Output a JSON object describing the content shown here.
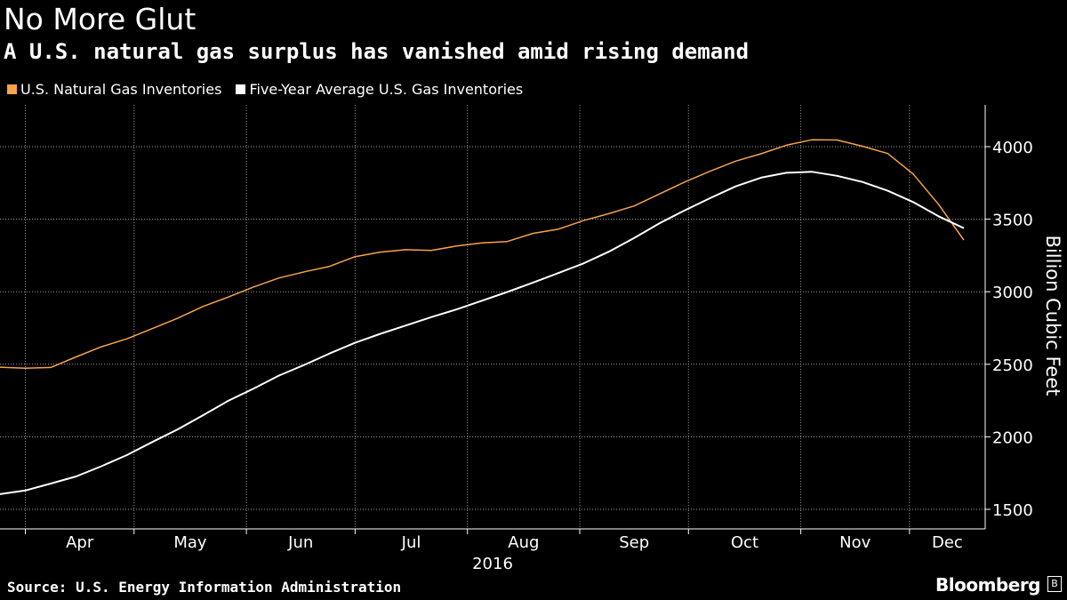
{
  "chart_data": {
    "type": "line",
    "title": "No More Glut",
    "subtitle": "A U.S. natural gas surplus has vanished amid rising demand",
    "ylabel": "Billion Cubic Feet",
    "year_label": "2016",
    "ylim": [
      1350,
      4300
    ],
    "y_ticks": [
      1500,
      2000,
      2500,
      3000,
      3500,
      4000
    ],
    "x_tick_labels": [
      "Apr",
      "May",
      "Jun",
      "Jul",
      "Aug",
      "Sep",
      "Oct",
      "Nov",
      "Dec"
    ],
    "grid": true,
    "legend_position": "top-left",
    "series": [
      {
        "name": "U.S. Natural Gas Inventories",
        "color": "#f6a34a",
        "x": [
          "2016-03-25",
          "2016-04-01",
          "2016-04-08",
          "2016-04-15",
          "2016-04-22",
          "2016-04-29",
          "2016-05-06",
          "2016-05-13",
          "2016-05-20",
          "2016-05-27",
          "2016-06-03",
          "2016-06-10",
          "2016-06-17",
          "2016-06-24",
          "2016-07-01",
          "2016-07-08",
          "2016-07-15",
          "2016-07-22",
          "2016-07-29",
          "2016-08-05",
          "2016-08-12",
          "2016-08-19",
          "2016-08-26",
          "2016-09-02",
          "2016-09-09",
          "2016-09-16",
          "2016-09-23",
          "2016-09-30",
          "2016-10-07",
          "2016-10-14",
          "2016-10-21",
          "2016-10-28",
          "2016-11-04",
          "2016-11-11",
          "2016-11-18",
          "2016-11-25",
          "2016-12-02",
          "2016-12-09",
          "2016-12-16"
        ],
        "values": [
          2480,
          2473,
          2478,
          2551,
          2621,
          2675,
          2746,
          2817,
          2898,
          2963,
          3033,
          3095,
          3137,
          3175,
          3242,
          3273,
          3290,
          3285,
          3315,
          3337,
          3346,
          3402,
          3431,
          3490,
          3538,
          3591,
          3674,
          3757,
          3831,
          3900,
          3951,
          4010,
          4047,
          4046,
          4003,
          3953,
          3812,
          3603,
          3356
        ]
      },
      {
        "name": "Five-Year Average U.S. Gas Inventories",
        "color": "#ffffff",
        "x": [
          "2016-03-25",
          "2016-04-01",
          "2016-04-08",
          "2016-04-15",
          "2016-04-22",
          "2016-04-29",
          "2016-05-06",
          "2016-05-13",
          "2016-05-20",
          "2016-05-27",
          "2016-06-03",
          "2016-06-10",
          "2016-06-17",
          "2016-06-24",
          "2016-07-01",
          "2016-07-08",
          "2016-07-15",
          "2016-07-22",
          "2016-07-29",
          "2016-08-05",
          "2016-08-12",
          "2016-08-19",
          "2016-08-26",
          "2016-09-02",
          "2016-09-09",
          "2016-09-16",
          "2016-09-23",
          "2016-09-30",
          "2016-10-07",
          "2016-10-14",
          "2016-10-21",
          "2016-10-28",
          "2016-11-04",
          "2016-11-11",
          "2016-11-18",
          "2016-11-25",
          "2016-12-02",
          "2016-12-09",
          "2016-12-16"
        ],
        "values": [
          1605,
          1630,
          1678,
          1727,
          1797,
          1874,
          1964,
          2051,
          2148,
          2248,
          2333,
          2422,
          2496,
          2575,
          2648,
          2710,
          2767,
          2825,
          2878,
          2938,
          2998,
          3062,
          3128,
          3195,
          3276,
          3371,
          3472,
          3561,
          3645,
          3726,
          3786,
          3820,
          3827,
          3799,
          3757,
          3696,
          3618,
          3520,
          3438
        ]
      }
    ]
  },
  "source": "Source: U.S. Energy Information Administration",
  "brand": "Bloomberg",
  "brand_mark": "B"
}
